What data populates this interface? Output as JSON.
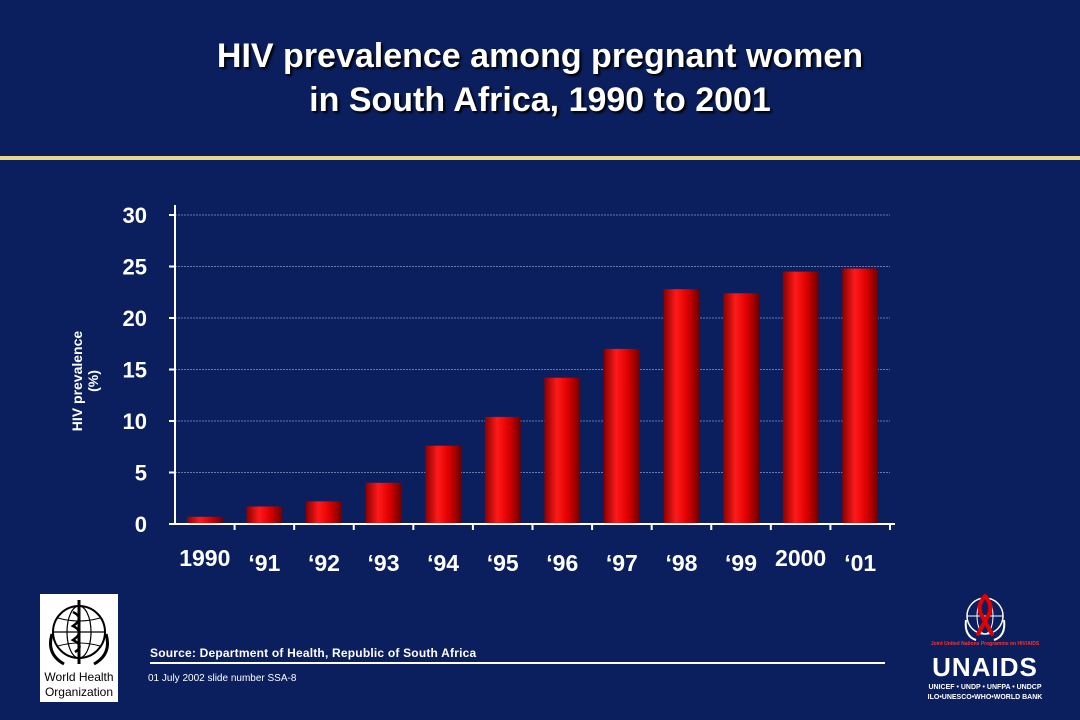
{
  "slide": {
    "title_line1": "HIV prevalence among pregnant women",
    "title_line2": "in South Africa, 1990 to 2001",
    "source": "Source:  Department of Health, Republic of South Africa",
    "slide_info": "01 July 2002 slide number SSA-8"
  },
  "logos": {
    "who_line1": "World Health",
    "who_line2": "Organization",
    "unaids_name": "UNAIDS",
    "unaids_tagline": "Joint United Nations Programme on HIV/AIDS",
    "unaids_sub1": "UNICEF • UNDP • UNFPA • UNDCP",
    "unaids_sub2": "ILO•UNESCO•WHO•WORLD BANK"
  },
  "colors": {
    "background": "#0b1f5e",
    "bar": "#e00000",
    "rule": "#e8d98a"
  },
  "chart_data": {
    "type": "bar",
    "categories": [
      "1990",
      "‘91",
      "‘92",
      "‘93",
      "‘94",
      "‘95",
      "‘96",
      "‘97",
      "‘98",
      "‘99",
      "2000",
      "‘01"
    ],
    "values": [
      0.7,
      1.7,
      2.2,
      4.0,
      7.6,
      10.4,
      14.2,
      17.0,
      22.8,
      22.4,
      24.5,
      24.8
    ],
    "title": "",
    "xlabel": "",
    "ylabel": "HIV prevalence (%)",
    "ylim": [
      0,
      30
    ],
    "yticks": [
      "0",
      "5",
      "10",
      "15",
      "20",
      "25",
      "30"
    ],
    "grid": true,
    "legend": "none"
  }
}
